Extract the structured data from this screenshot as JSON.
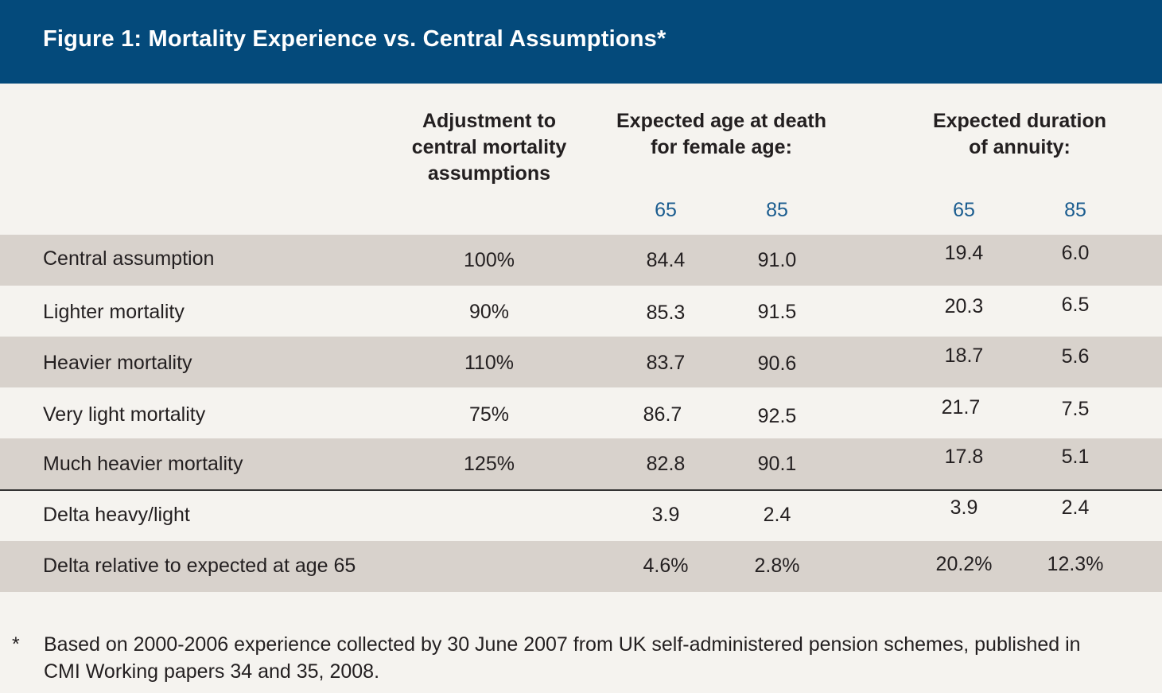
{
  "title": "Figure 1: Mortality Experience vs. Central Assumptions*",
  "columns": {
    "adjustment": "Adjustment to\ncentral mortality\nassumptions",
    "age_at_death": "Expected age at death\nfor female age:",
    "duration": "Expected duration\nof annuity:",
    "age_65": "65",
    "age_85": "85"
  },
  "rows": [
    {
      "label": "Central assumption",
      "adjustment": "100%",
      "age65": "84.4",
      "age85": "91.0",
      "dur65": "19.4",
      "dur85": "6.0"
    },
    {
      "label": "Lighter mortality",
      "adjustment": "90%",
      "age65": "85.3",
      "age85": "91.5",
      "dur65": "20.3",
      "dur85": "6.5"
    },
    {
      "label": "Heavier mortality",
      "adjustment": "110%",
      "age65": "83.7",
      "age85": "90.6",
      "dur65": "18.7",
      "dur85": "5.6"
    },
    {
      "label": "Very light mortality",
      "adjustment": "75%",
      "age65": "86.7",
      "age85": "92.5",
      "dur65": "21.7",
      "dur85": "7.5"
    },
    {
      "label": "Much heavier mortality",
      "adjustment": "125%",
      "age65": "82.8",
      "age85": "90.1",
      "dur65": "17.8",
      "dur85": "5.1"
    },
    {
      "label": "Delta heavy/light",
      "adjustment": "",
      "age65": "3.9",
      "age85": "2.4",
      "dur65": "3.9",
      "dur85": "2.4"
    },
    {
      "label": "Delta relative to expected at age 65",
      "adjustment": "",
      "age65": "4.6%",
      "age85": "2.8%",
      "dur65": "20.2%",
      "dur85": "12.3%"
    }
  ],
  "footnote": {
    "marker": "*",
    "text": "Based on 2000-2006 experience collected by 30 June 2007 from UK self-administered pension schemes, published in CMI Working papers 34 and 35, 2008."
  },
  "colors": {
    "header_bg": "#044a7b",
    "shaded_row": "#d8d2cc",
    "page_bg": "#f5f3ef",
    "subhead_blue": "#1a5c8f"
  }
}
